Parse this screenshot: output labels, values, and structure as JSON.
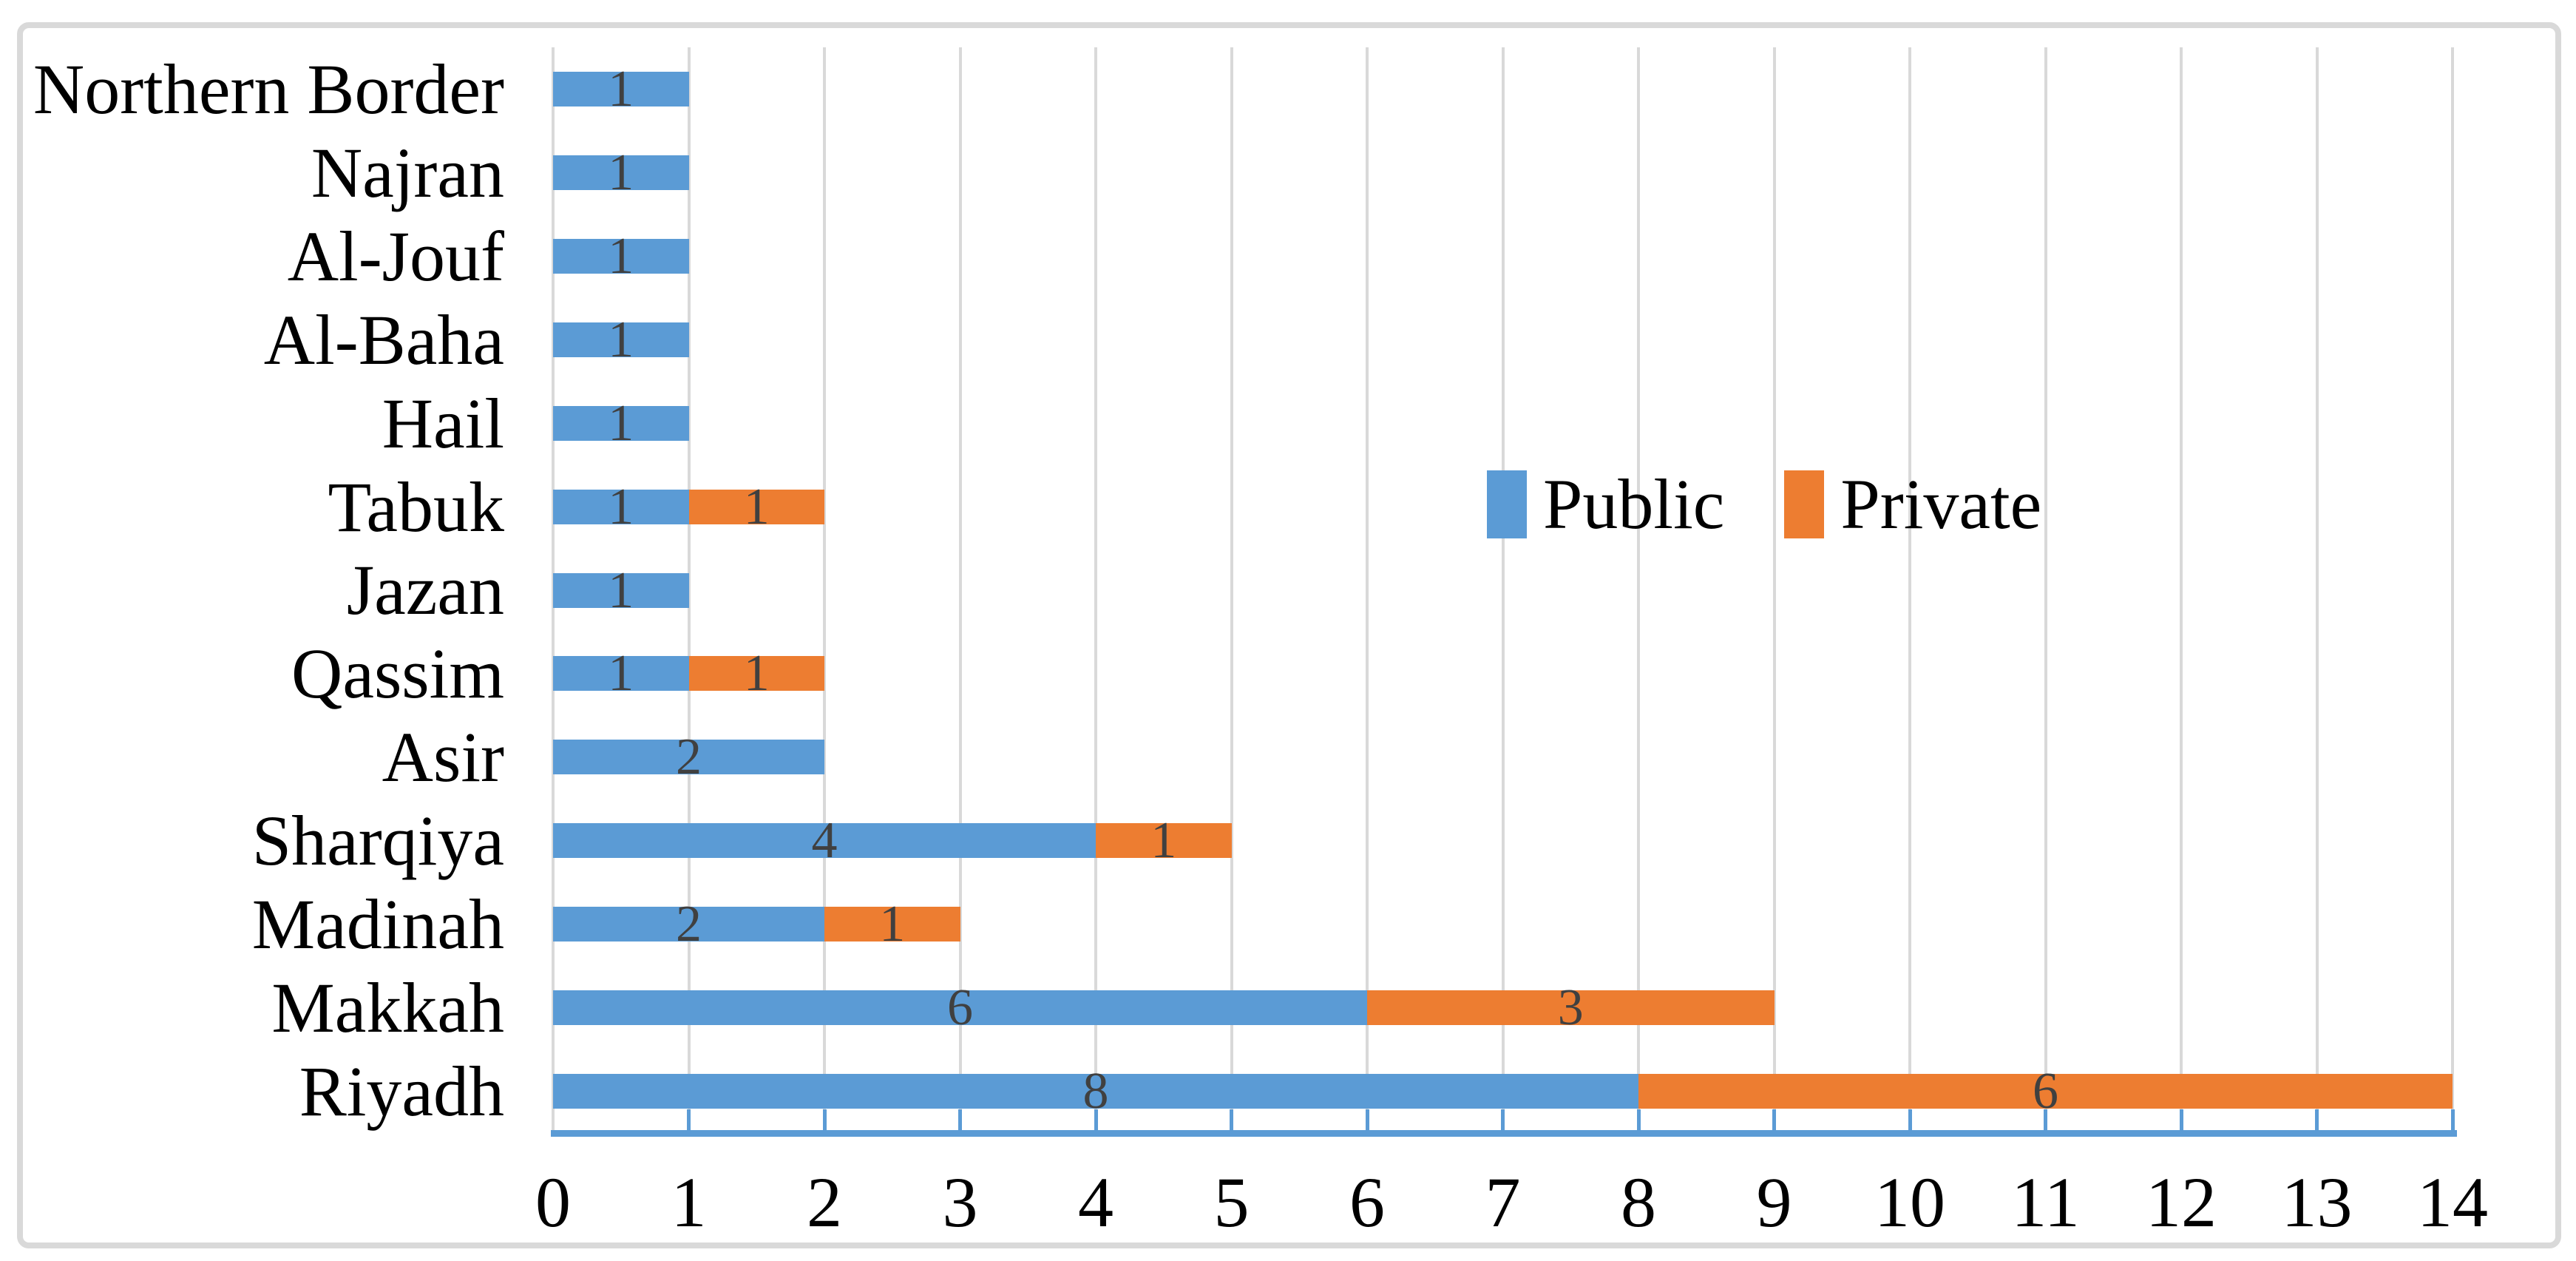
{
  "chart_data": {
    "type": "bar",
    "orientation": "horizontal",
    "stacked": true,
    "categories_top_to_bottom": [
      "Northern Border",
      "Najran",
      "Al-Jouf",
      "Al-Baha",
      "Hail",
      "Tabuk",
      "Jazan",
      "Qassim",
      "Asir",
      "Sharqiya",
      "Madinah",
      "Makkah",
      "Riyadh"
    ],
    "series": [
      {
        "name": "Public",
        "color": "#5B9BD5",
        "values": [
          1,
          1,
          1,
          1,
          1,
          1,
          1,
          1,
          2,
          4,
          2,
          6,
          8
        ]
      },
      {
        "name": "Private",
        "color": "#ED7D31",
        "values": [
          0,
          0,
          0,
          0,
          0,
          1,
          0,
          1,
          0,
          1,
          1,
          3,
          6
        ]
      }
    ],
    "xlim": [
      0,
      14
    ],
    "x_tick_step": 1,
    "x_tick_labels": [
      "0",
      "1",
      "2",
      "3",
      "4",
      "5",
      "6",
      "7",
      "8",
      "9",
      "10",
      "11",
      "12",
      "13",
      "14"
    ],
    "grid": "vertical-major",
    "data_labels_visible": true,
    "legend_position": "inside-upper-right",
    "colors": {
      "gridline": "#D9D9D9",
      "axis_line": "#5B9BD5",
      "data_label": "#404040",
      "text": "#000000",
      "frame_border": "#D9D9D9"
    }
  }
}
